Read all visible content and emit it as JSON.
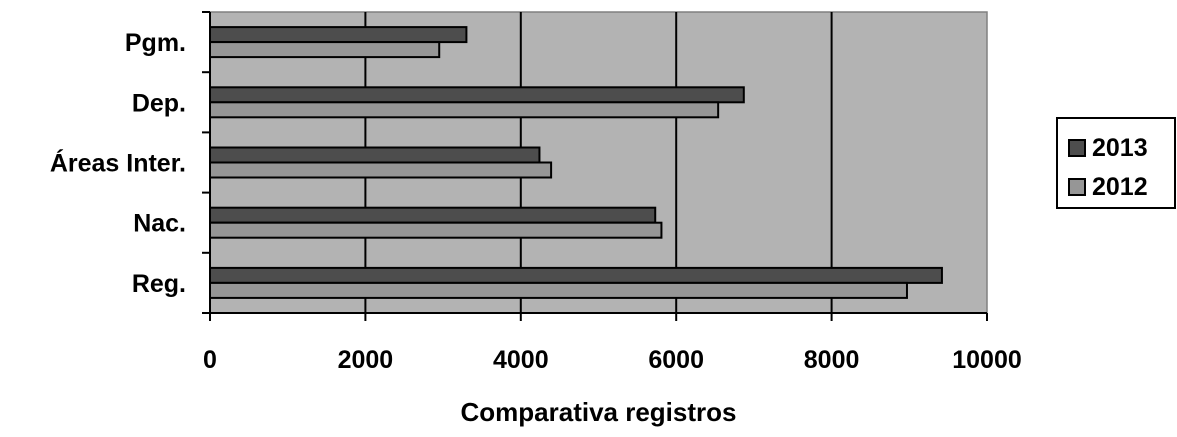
{
  "chart_data": {
    "type": "bar",
    "orientation": "horizontal",
    "categories": [
      "Reg.",
      "Nac.",
      "Áreas Inter.",
      "Dep.",
      "Pgm."
    ],
    "series": [
      {
        "name": "2013",
        "color": "#4d4d4d",
        "values": [
          9420,
          5730,
          4240,
          6870,
          3300
        ]
      },
      {
        "name": "2012",
        "color": "#969696",
        "values": [
          8970,
          5810,
          4390,
          6540,
          2950
        ]
      }
    ],
    "xlabel": "Comparativa registros",
    "ylabel": "",
    "xlim": [
      0,
      10000
    ],
    "xticks": [
      "0",
      "2000",
      "4000",
      "6000",
      "8000",
      "10000"
    ],
    "grid": "vertical major gridlines",
    "plot_background": "#b3b3b3",
    "legend_position": "right"
  }
}
